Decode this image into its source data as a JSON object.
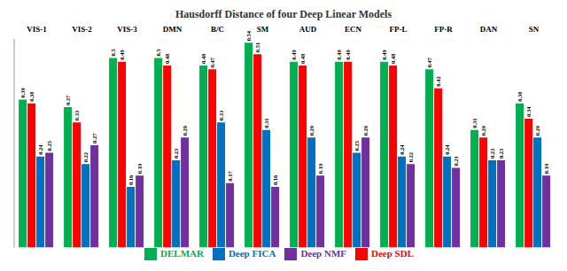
{
  "chart_data": {
    "type": "bar",
    "title": "Hausdorff Distance of four Deep Linear Models",
    "categories": [
      "VIS-1",
      "VIS-2",
      "VIS-3",
      "DMN",
      "B/C",
      "SM",
      "AUD",
      "ECN",
      "FP-L",
      "FP-R",
      "DAN",
      "SN"
    ],
    "series": [
      {
        "name": "DELMAR",
        "color": "#00b050",
        "values": [
          0.39,
          0.37,
          0.5,
          0.5,
          0.48,
          0.54,
          0.49,
          0.49,
          0.49,
          0.47,
          0.31,
          0.38
        ]
      },
      {
        "name": "Deep SDL",
        "color": "#ff0000",
        "values": [
          0.38,
          0.33,
          0.49,
          0.48,
          0.47,
          0.51,
          0.48,
          0.49,
          0.48,
          0.42,
          0.29,
          0.34
        ]
      },
      {
        "name": "Deep FICA",
        "color": "#0070c0",
        "values": [
          0.24,
          0.22,
          0.16,
          0.23,
          0.33,
          0.31,
          0.29,
          0.25,
          0.24,
          0.24,
          0.23,
          0.29
        ]
      },
      {
        "name": "Deep NMF",
        "color": "#7030a0",
        "values": [
          0.25,
          0.27,
          0.19,
          0.29,
          0.17,
          0.16,
          0.19,
          0.29,
          0.22,
          0.21,
          0.23,
          0.19
        ]
      }
    ],
    "ylim": [
      0,
      0.55
    ],
    "grid": false,
    "legend": "bottom",
    "data_labels": true,
    "tick_labels": "x"
  }
}
